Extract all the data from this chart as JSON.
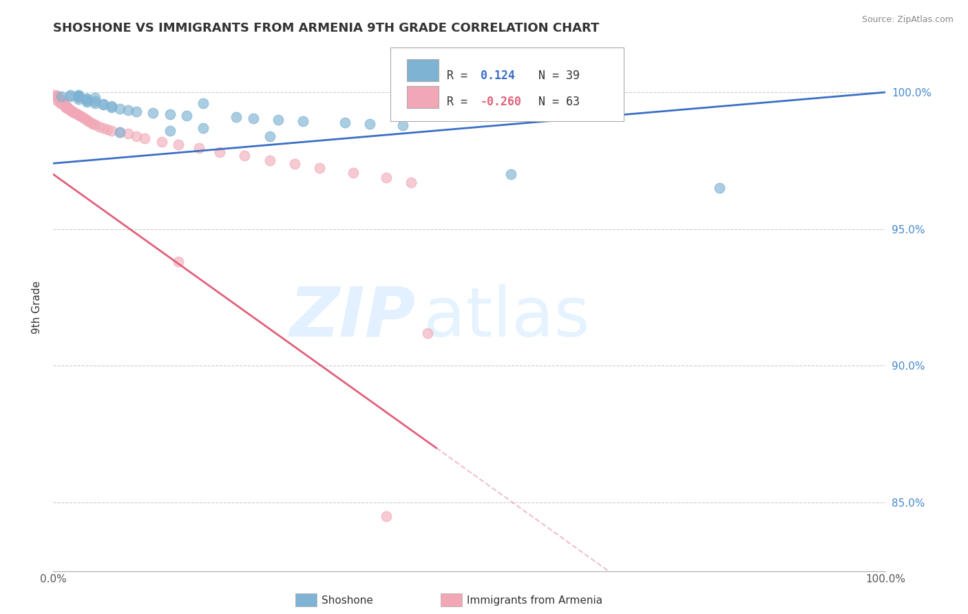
{
  "title": "SHOSHONE VS IMMIGRANTS FROM ARMENIA 9TH GRADE CORRELATION CHART",
  "source": "Source: ZipAtlas.com",
  "ylabel": "9th Grade",
  "ytick_labels": [
    "85.0%",
    "90.0%",
    "95.0%",
    "100.0%"
  ],
  "ytick_values": [
    0.85,
    0.9,
    0.95,
    1.0
  ],
  "xlim": [
    0.0,
    1.0
  ],
  "ylim": [
    0.825,
    1.018
  ],
  "blue_color": "#7FB3D3",
  "pink_color": "#F1A7B5",
  "blue_line_color": "#3B6FC4",
  "pink_line_color": "#E0607A",
  "blue_r": "0.124",
  "blue_n": "39",
  "pink_r": "-0.260",
  "pink_n": "63",
  "shoshone_x": [
    0.01,
    0.02,
    0.02,
    0.03,
    0.03,
    0.03,
    0.03,
    0.03,
    0.04,
    0.04,
    0.04,
    0.04,
    0.05,
    0.05,
    0.06,
    0.06,
    0.07,
    0.07,
    0.08,
    0.09,
    0.1,
    0.12,
    0.14,
    0.16,
    0.18,
    0.22,
    0.24,
    0.27,
    0.3,
    0.35,
    0.38,
    0.42,
    0.55,
    0.8,
    0.26,
    0.18,
    0.14,
    0.08,
    0.05
  ],
  "shoshone_y": [
    0.9985,
    0.999,
    0.9985,
    0.9988,
    0.9982,
    0.9975,
    0.999,
    0.9985,
    0.9978,
    0.997,
    0.9965,
    0.9975,
    0.9968,
    0.996,
    0.9958,
    0.9955,
    0.995,
    0.9945,
    0.994,
    0.9935,
    0.993,
    0.9925,
    0.992,
    0.9915,
    0.996,
    0.991,
    0.9905,
    0.99,
    0.9895,
    0.989,
    0.9885,
    0.988,
    0.97,
    0.965,
    0.984,
    0.987,
    0.986,
    0.9855,
    0.998
  ],
  "armenia_x": [
    0.002,
    0.003,
    0.004,
    0.005,
    0.006,
    0.007,
    0.008,
    0.009,
    0.01,
    0.011,
    0.012,
    0.013,
    0.015,
    0.016,
    0.017,
    0.018,
    0.02,
    0.022,
    0.024,
    0.026,
    0.028,
    0.03,
    0.032,
    0.034,
    0.036,
    0.038,
    0.04,
    0.042,
    0.045,
    0.048,
    0.05,
    0.055,
    0.06,
    0.065,
    0.07,
    0.005,
    0.007,
    0.009,
    0.011,
    0.013,
    0.015,
    0.017,
    0.019,
    0.021,
    0.023,
    0.08,
    0.09,
    0.1,
    0.11,
    0.13,
    0.15,
    0.175,
    0.2,
    0.23,
    0.26,
    0.29,
    0.32,
    0.36,
    0.4,
    0.43,
    0.15,
    0.45,
    0.4
  ],
  "armenia_y": [
    0.999,
    0.9985,
    0.9982,
    0.9988,
    0.998,
    0.9975,
    0.9978,
    0.997,
    0.9968,
    0.9965,
    0.996,
    0.9955,
    0.9945,
    0.9948,
    0.9942,
    0.994,
    0.9935,
    0.9932,
    0.9928,
    0.9925,
    0.9922,
    0.9918,
    0.9915,
    0.9912,
    0.9908,
    0.9905,
    0.99,
    0.9895,
    0.989,
    0.9885,
    0.9882,
    0.9875,
    0.987,
    0.9865,
    0.986,
    0.997,
    0.9965,
    0.996,
    0.9958,
    0.9952,
    0.995,
    0.9945,
    0.994,
    0.9935,
    0.993,
    0.9855,
    0.9848,
    0.984,
    0.9832,
    0.982,
    0.9808,
    0.9795,
    0.9782,
    0.9768,
    0.9752,
    0.9738,
    0.9722,
    0.9706,
    0.9688,
    0.967,
    0.938,
    0.912,
    0.845
  ]
}
